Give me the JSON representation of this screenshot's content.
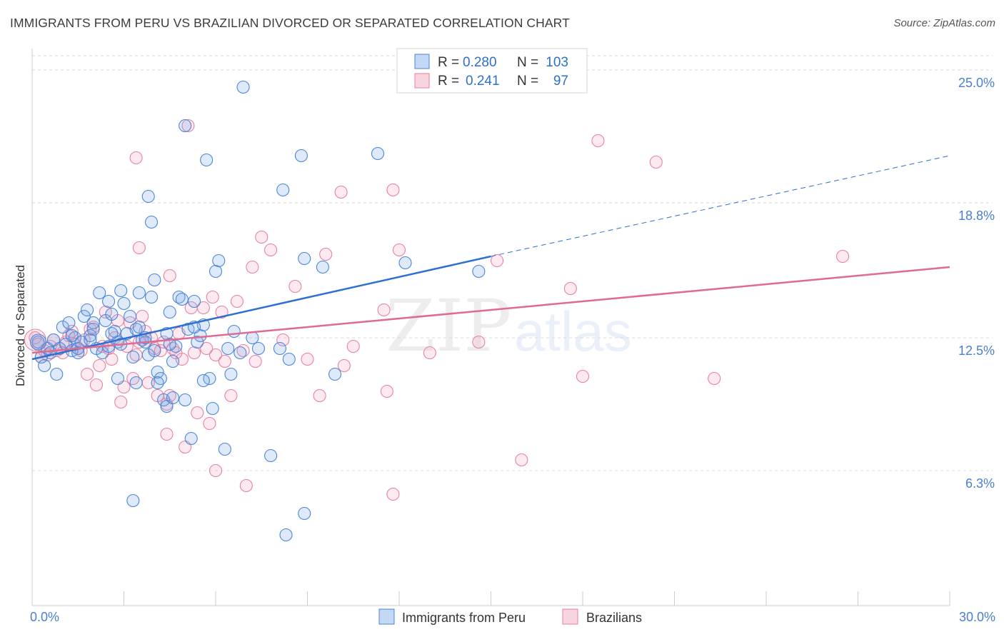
{
  "title": "IMMIGRANTS FROM PERU VS BRAZILIAN DIVORCED OR SEPARATED CORRELATION CHART",
  "source": "Source: ZipAtlas.com",
  "watermark": {
    "zip": "ZIP",
    "atlas": "atlas"
  },
  "colors": {
    "blue": "#4a86d8",
    "blue_fill": "rgba(122,168,232,0.25)",
    "blue_line": "#2f6fcf",
    "pink": "#e8809f",
    "pink_fill": "rgba(240,160,185,0.22)",
    "pink_line": "#e06a92",
    "tick_label": "#4a7fd0",
    "grid": "#d9d9d9"
  },
  "legend_top": [
    {
      "r_label": "R =",
      "r_value": "0.280",
      "n_label": "N =",
      "n_value": "103"
    },
    {
      "r_label": "R =",
      "r_value": "0.241",
      "n_label": "N =",
      "n_value": "97"
    }
  ],
  "chart_data": {
    "type": "scatter",
    "title": "IMMIGRANTS FROM PERU VS BRAZILIAN DIVORCED OR SEPARATED CORRELATION CHART",
    "xlabel": "",
    "ylabel": "Divorced or Separated",
    "xlim": [
      0,
      30
    ],
    "ylim": [
      0,
      26
    ],
    "x_tick_labels": [
      "0.0%",
      "30.0%"
    ],
    "y_ticks": [
      6.3,
      12.5,
      18.8,
      25.0
    ],
    "y_tick_labels": [
      "6.3%",
      "12.5%",
      "18.8%",
      "25.0%"
    ],
    "grid": "horizontal dashed",
    "legend_position": "top-center and bottom",
    "series": [
      {
        "name": "Immigrants from Peru",
        "color": "blue",
        "r": 0.28,
        "n": 103,
        "trend": {
          "x": [
            0,
            15
          ],
          "y": [
            11.5,
            16.3
          ],
          "dashed_extension": {
            "x": [
              15,
              30
            ],
            "y": [
              16.3,
              21.0
            ]
          }
        },
        "points": [
          [
            0.2,
            12.3
          ],
          [
            0.3,
            11.6
          ],
          [
            0.4,
            11.2
          ],
          [
            0.5,
            12.0
          ],
          [
            0.6,
            11.8
          ],
          [
            0.7,
            12.4
          ],
          [
            0.8,
            10.8
          ],
          [
            0.9,
            12.0
          ],
          [
            1.0,
            13.0
          ],
          [
            1.1,
            12.2
          ],
          [
            1.2,
            13.2
          ],
          [
            1.3,
            11.9
          ],
          [
            1.4,
            12.5
          ],
          [
            1.5,
            12.0
          ],
          [
            1.5,
            11.8
          ],
          [
            1.6,
            12.3
          ],
          [
            1.7,
            13.5
          ],
          [
            1.8,
            13.8
          ],
          [
            1.9,
            12.6
          ],
          [
            2.0,
            12.9
          ],
          [
            2.0,
            13.2
          ],
          [
            2.1,
            12.0
          ],
          [
            2.2,
            14.6
          ],
          [
            2.3,
            11.8
          ],
          [
            2.4,
            13.3
          ],
          [
            2.5,
            14.2
          ],
          [
            2.6,
            13.6
          ],
          [
            2.7,
            12.8
          ],
          [
            2.8,
            12.3
          ],
          [
            2.8,
            10.6
          ],
          [
            2.9,
            14.7
          ],
          [
            3.0,
            14.1
          ],
          [
            3.1,
            12.7
          ],
          [
            3.2,
            13.5
          ],
          [
            3.3,
            11.6
          ],
          [
            3.4,
            12.9
          ],
          [
            3.5,
            13.0
          ],
          [
            3.5,
            14.6
          ],
          [
            3.6,
            12.4
          ],
          [
            3.7,
            12.3
          ],
          [
            3.8,
            11.7
          ],
          [
            3.9,
            14.4
          ],
          [
            4.0,
            11.9
          ],
          [
            4.1,
            10.9
          ],
          [
            4.2,
            10.6
          ],
          [
            4.3,
            9.6
          ],
          [
            4.4,
            9.3
          ],
          [
            4.5,
            13.7
          ],
          [
            4.6,
            11.4
          ],
          [
            4.7,
            12.1
          ],
          [
            4.8,
            14.4
          ],
          [
            4.9,
            14.3
          ],
          [
            5.0,
            9.6
          ],
          [
            5.1,
            12.9
          ],
          [
            5.2,
            7.8
          ],
          [
            5.3,
            14.2
          ],
          [
            5.4,
            12.3
          ],
          [
            5.5,
            12.6
          ],
          [
            5.6,
            13.1
          ],
          [
            5.8,
            10.6
          ],
          [
            5.9,
            9.2
          ],
          [
            6.0,
            15.6
          ],
          [
            6.1,
            16.1
          ],
          [
            6.3,
            7.3
          ],
          [
            6.4,
            12.0
          ],
          [
            6.5,
            10.8
          ],
          [
            6.6,
            12.8
          ],
          [
            7.2,
            12.5
          ],
          [
            7.4,
            12.0
          ],
          [
            7.8,
            7.0
          ],
          [
            8.1,
            12.0
          ],
          [
            8.4,
            11.5
          ],
          [
            8.9,
            16.2
          ],
          [
            9.5,
            15.8
          ],
          [
            9.9,
            10.8
          ],
          [
            11.3,
            21.1
          ],
          [
            12.2,
            16.0
          ],
          [
            14.6,
            15.6
          ],
          [
            1.9,
            12.4
          ],
          [
            2.5,
            12.1
          ],
          [
            3.8,
            19.1
          ],
          [
            3.9,
            17.9
          ],
          [
            4.0,
            15.2
          ],
          [
            4.1,
            10.4
          ],
          [
            4.5,
            12.2
          ],
          [
            5.0,
            22.4
          ],
          [
            5.7,
            20.8
          ],
          [
            6.9,
            24.2
          ],
          [
            8.2,
            19.4
          ],
          [
            8.8,
            21.0
          ],
          [
            8.9,
            4.3
          ],
          [
            3.3,
            4.9
          ],
          [
            8.3,
            3.3
          ],
          [
            5.6,
            10.5
          ],
          [
            4.4,
            12.7
          ],
          [
            6.8,
            11.8
          ],
          [
            1.3,
            12.6
          ],
          [
            2.6,
            12.7
          ],
          [
            3.4,
            10.4
          ],
          [
            4.6,
            9.7
          ],
          [
            3.7,
            12.5
          ],
          [
            2.9,
            12.2
          ],
          [
            5.3,
            13.0
          ]
        ]
      },
      {
        "name": "Brazilians",
        "color": "pink",
        "r": 0.241,
        "n": 97,
        "trend": {
          "x": [
            0,
            30
          ],
          "y": [
            11.8,
            15.8
          ]
        },
        "points": [
          [
            0.1,
            12.5
          ],
          [
            0.2,
            12.2
          ],
          [
            0.3,
            11.6
          ],
          [
            0.4,
            11.9
          ],
          [
            0.5,
            11.7
          ],
          [
            0.6,
            12.1
          ],
          [
            0.7,
            12.4
          ],
          [
            0.8,
            11.9
          ],
          [
            0.9,
            12.0
          ],
          [
            1.0,
            11.8
          ],
          [
            1.1,
            12.3
          ],
          [
            1.2,
            12.6
          ],
          [
            1.3,
            12.8
          ],
          [
            1.4,
            12.2
          ],
          [
            1.5,
            12.0
          ],
          [
            1.6,
            11.9
          ],
          [
            1.7,
            12.4
          ],
          [
            1.8,
            10.8
          ],
          [
            1.9,
            12.9
          ],
          [
            2.0,
            13.0
          ],
          [
            2.1,
            10.3
          ],
          [
            2.2,
            11.2
          ],
          [
            2.3,
            12.1
          ],
          [
            2.4,
            13.7
          ],
          [
            2.5,
            12.0
          ],
          [
            2.6,
            11.5
          ],
          [
            2.7,
            12.5
          ],
          [
            2.8,
            13.3
          ],
          [
            2.9,
            9.5
          ],
          [
            3.0,
            10.2
          ],
          [
            3.1,
            12.1
          ],
          [
            3.2,
            13.2
          ],
          [
            3.3,
            10.6
          ],
          [
            3.4,
            11.7
          ],
          [
            3.5,
            12.3
          ],
          [
            3.6,
            13.5
          ],
          [
            3.7,
            12.8
          ],
          [
            3.8,
            10.4
          ],
          [
            3.9,
            12.5
          ],
          [
            4.0,
            12.0
          ],
          [
            4.1,
            9.8
          ],
          [
            4.2,
            11.9
          ],
          [
            4.3,
            12.3
          ],
          [
            4.4,
            9.4
          ],
          [
            4.5,
            9.8
          ],
          [
            4.6,
            12.0
          ],
          [
            4.7,
            11.8
          ],
          [
            4.8,
            12.7
          ],
          [
            4.9,
            11.5
          ],
          [
            5.0,
            7.4
          ],
          [
            5.2,
            13.9
          ],
          [
            5.3,
            11.8
          ],
          [
            5.4,
            9.0
          ],
          [
            5.6,
            13.9
          ],
          [
            5.7,
            12.0
          ],
          [
            5.8,
            8.5
          ],
          [
            5.9,
            14.4
          ],
          [
            6.0,
            11.7
          ],
          [
            6.2,
            13.7
          ],
          [
            6.3,
            11.4
          ],
          [
            6.5,
            9.8
          ],
          [
            6.7,
            14.2
          ],
          [
            6.9,
            11.9
          ],
          [
            7.2,
            15.8
          ],
          [
            7.3,
            11.4
          ],
          [
            7.5,
            17.2
          ],
          [
            7.8,
            16.6
          ],
          [
            8.2,
            12.4
          ],
          [
            8.6,
            14.9
          ],
          [
            9.0,
            11.5
          ],
          [
            9.4,
            9.8
          ],
          [
            9.6,
            16.4
          ],
          [
            10.2,
            11.2
          ],
          [
            10.5,
            12.1
          ],
          [
            11.5,
            13.8
          ],
          [
            11.6,
            10.0
          ],
          [
            12.0,
            16.6
          ],
          [
            13.0,
            11.8
          ],
          [
            14.6,
            12.3
          ],
          [
            15.2,
            16.1
          ],
          [
            16.0,
            6.8
          ],
          [
            17.6,
            14.8
          ],
          [
            18.0,
            10.7
          ],
          [
            18.5,
            21.7
          ],
          [
            20.4,
            20.7
          ],
          [
            22.3,
            10.6
          ],
          [
            26.5,
            16.3
          ],
          [
            3.5,
            16.7
          ],
          [
            3.4,
            20.9
          ],
          [
            4.5,
            15.4
          ],
          [
            5.1,
            22.4
          ],
          [
            6.0,
            6.3
          ],
          [
            7.0,
            5.6
          ],
          [
            10.1,
            19.3
          ],
          [
            11.8,
            19.4
          ],
          [
            11.8,
            5.2
          ],
          [
            4.4,
            8.0
          ]
        ]
      }
    ]
  }
}
